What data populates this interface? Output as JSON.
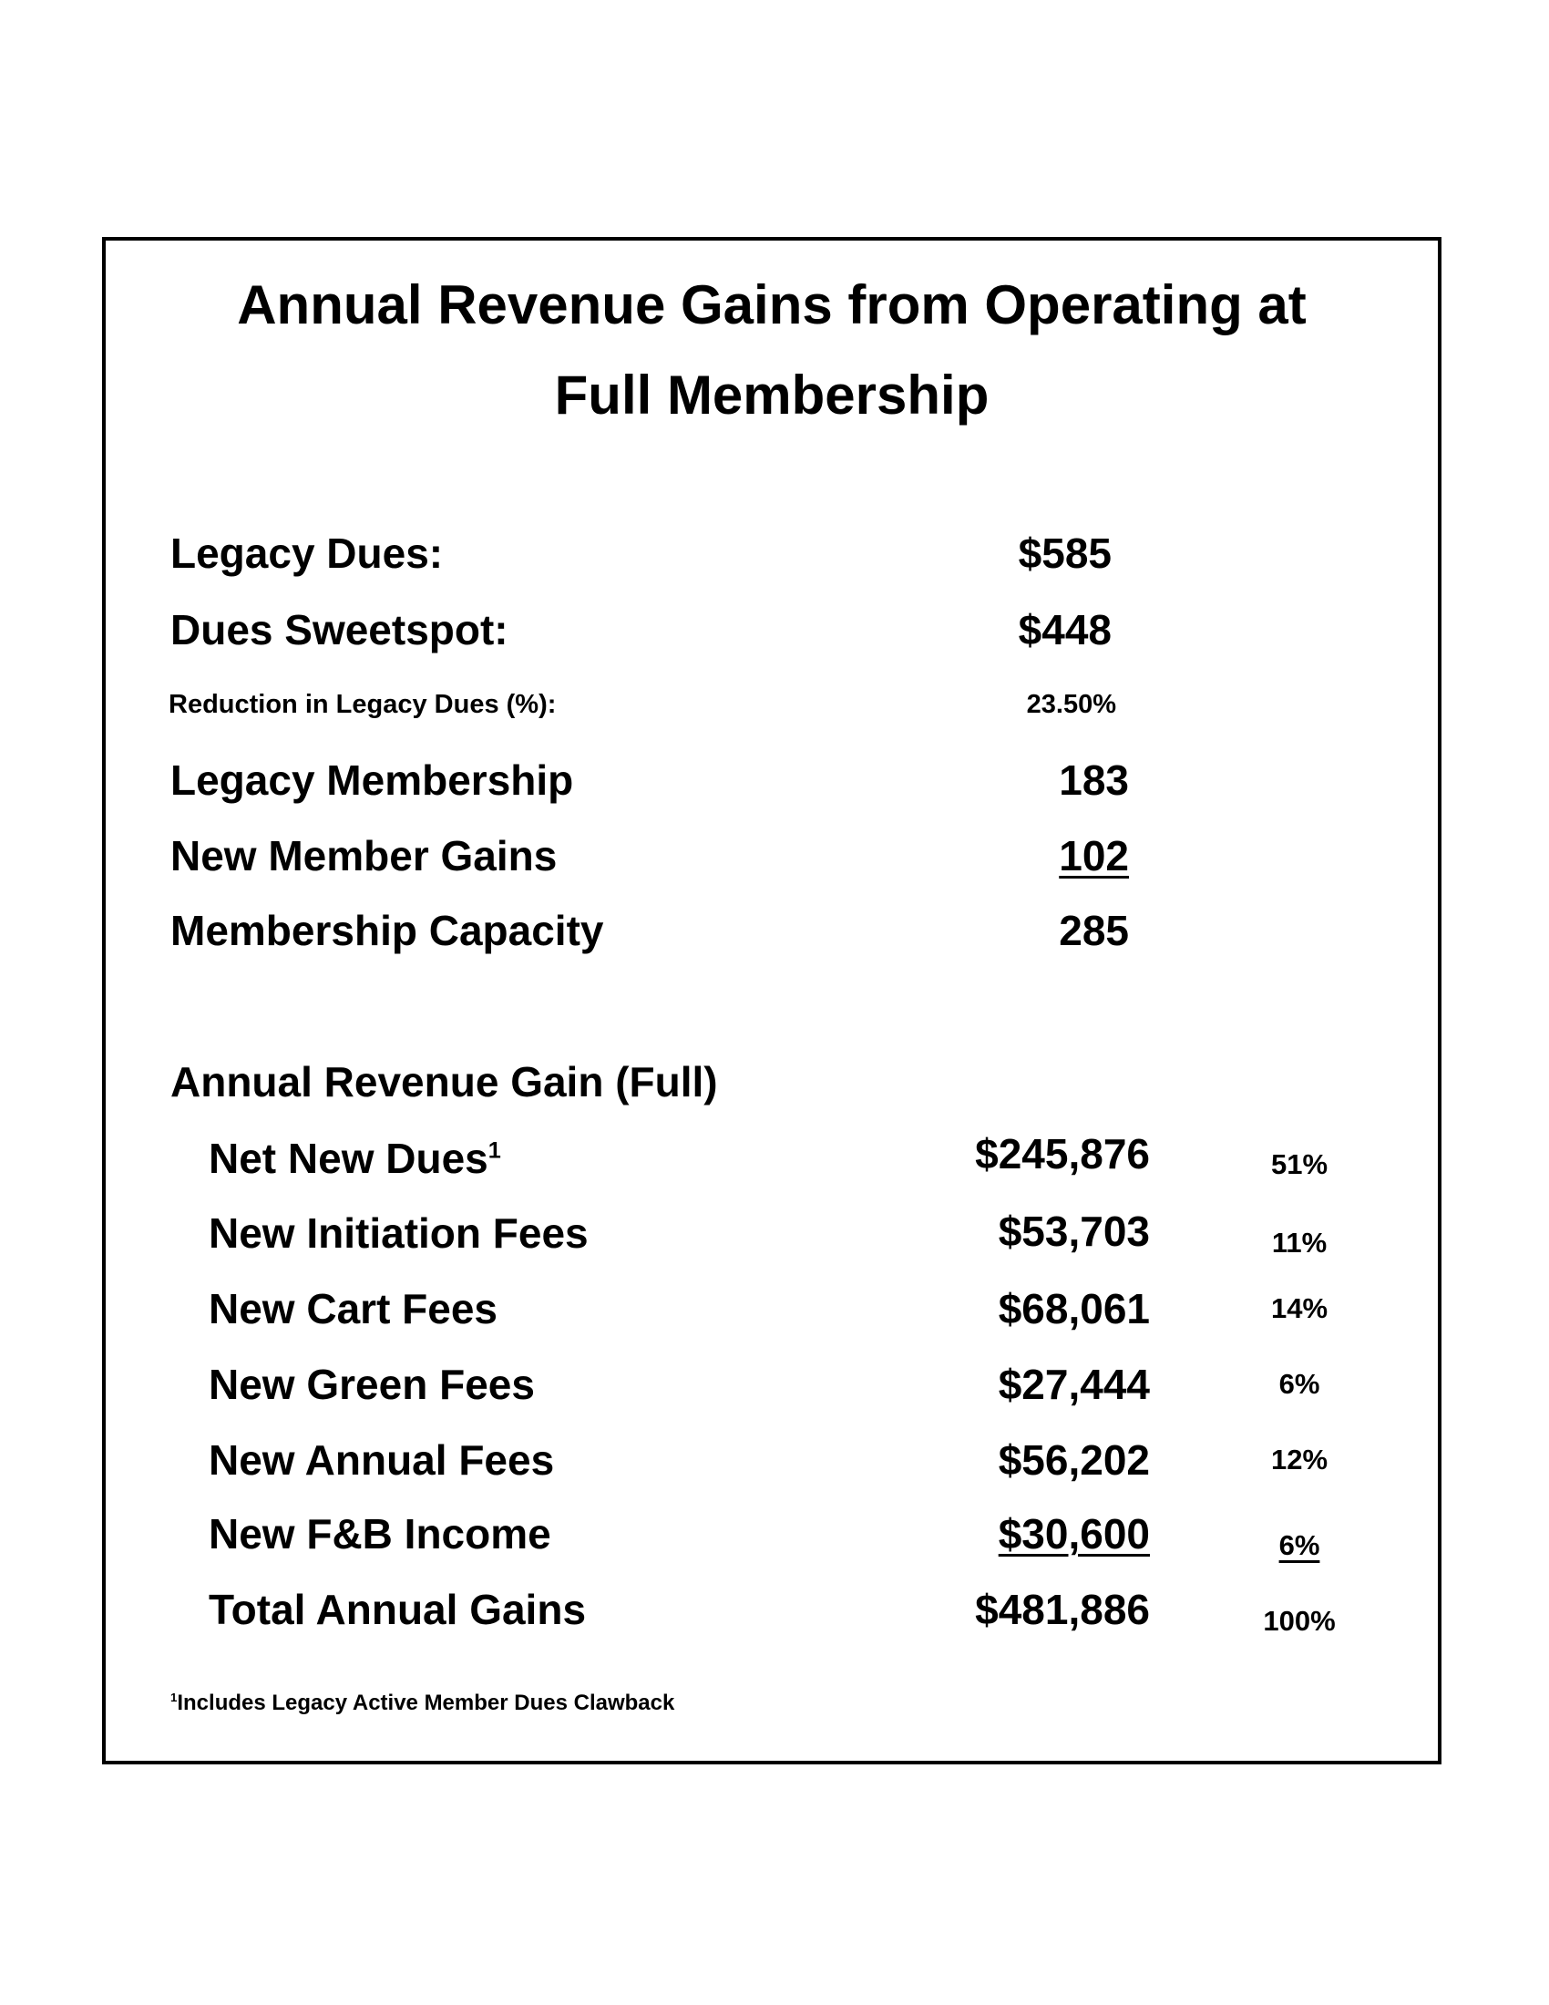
{
  "title_line1": "Annual Revenue Gains from Operating at",
  "title_line2": "Full Membership",
  "summary": {
    "legacy_dues": {
      "label": "Legacy Dues:",
      "value": "$585"
    },
    "dues_sweetspot": {
      "label": "Dues Sweetspot:",
      "value": "$448"
    },
    "reduction": {
      "label": "Reduction in Legacy Dues (%):",
      "value": "23.50%"
    },
    "legacy_membership": {
      "label": "Legacy Membership",
      "value": "183"
    },
    "new_member_gains": {
      "label": "New Member Gains",
      "value": "102"
    },
    "membership_capacity": {
      "label": "Membership Capacity",
      "value": "285"
    }
  },
  "revenue": {
    "heading": "Annual Revenue Gain (Full)",
    "rows": [
      {
        "label": "Net New Dues",
        "sup": "1",
        "value": "$245,876",
        "pct": "51%"
      },
      {
        "label": "New Initiation Fees",
        "value": "$53,703",
        "pct": "11%"
      },
      {
        "label": "New Cart Fees",
        "value": "$68,061",
        "pct": "14%"
      },
      {
        "label": "New Green Fees",
        "value": "$27,444",
        "pct": "6%"
      },
      {
        "label": "New Annual Fees",
        "value": "$56,202",
        "pct": "12%"
      },
      {
        "label": "New F&B Income",
        "value": "$30,600",
        "pct": "6%"
      },
      {
        "label": "Total Annual Gains",
        "value": "$481,886",
        "pct": "100%"
      }
    ]
  },
  "footnote": {
    "mark": "1",
    "text": "Includes Legacy Active Member Dues Clawback"
  }
}
